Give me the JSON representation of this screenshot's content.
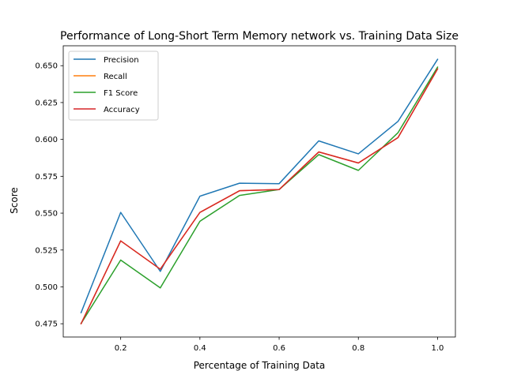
{
  "chart_data": {
    "type": "line",
    "title": "Performance of Long-Short Term Memory network vs. Training Data Size",
    "xlabel": "Percentage of Training Data",
    "ylabel": "Score",
    "x": [
      0.1,
      0.2,
      0.3,
      0.4,
      0.5,
      0.6,
      0.7,
      0.8,
      0.9,
      1.0
    ],
    "xlim": [
      0.055,
      1.045
    ],
    "ylim": [
      0.466,
      0.6635
    ],
    "x_ticks": [
      "0.2",
      "0.4",
      "0.6",
      "0.8",
      "1.0"
    ],
    "x_tick_values": [
      0.2,
      0.4,
      0.6,
      0.8,
      1.0
    ],
    "y_ticks": [
      "0.475",
      "0.500",
      "0.525",
      "0.550",
      "0.575",
      "0.600",
      "0.625",
      "0.650"
    ],
    "y_tick_values": [
      0.475,
      0.5,
      0.525,
      0.55,
      0.575,
      0.6,
      0.625,
      0.65
    ],
    "grid": false,
    "legend_position": "upper-left",
    "series": [
      {
        "name": "Precision",
        "color": "#1f77b4",
        "values": [
          0.4825,
          0.5505,
          0.5105,
          0.5615,
          0.5703,
          0.57,
          0.599,
          0.5902,
          0.6122,
          0.6543
        ]
      },
      {
        "name": "Recall",
        "color": "#ff7f0e",
        "values": [
          0.475,
          0.5312,
          0.512,
          0.5505,
          0.5652,
          0.566,
          0.5915,
          0.584,
          0.6012,
          0.6478
        ]
      },
      {
        "name": "F1 Score",
        "color": "#2ca02c",
        "values": [
          0.4752,
          0.5182,
          0.4993,
          0.5445,
          0.562,
          0.566,
          0.5897,
          0.579,
          0.6045,
          0.649
        ]
      },
      {
        "name": "Accuracy",
        "color": "#d62728",
        "values": [
          0.475,
          0.5312,
          0.512,
          0.5505,
          0.5652,
          0.566,
          0.5915,
          0.584,
          0.6012,
          0.6478
        ]
      }
    ]
  }
}
